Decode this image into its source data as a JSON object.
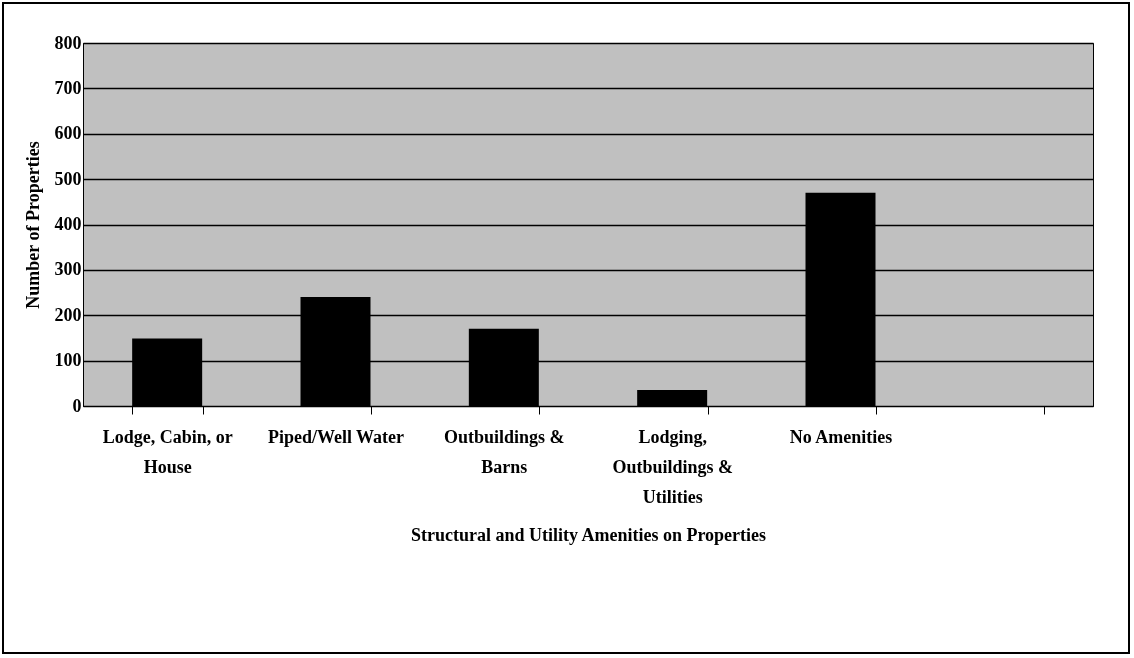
{
  "chart_data": {
    "type": "bar",
    "xlabel": "Structural and Utility Amenities on Properties",
    "ylabel": "Number of Properties",
    "categories": [
      "Lodge, Cabin, or House",
      "Piped/Well Water",
      "Outbuildings & Barns",
      "Lodging, Outbuildings & Utilities",
      "No Amenities",
      null
    ],
    "values": [
      149,
      240,
      170,
      35,
      470,
      null
    ],
    "color": "#000000",
    "ylim": [
      0,
      800
    ],
    "yticks": [
      0,
      100,
      200,
      300,
      400,
      500,
      600,
      700,
      800
    ],
    "grid": "y"
  }
}
